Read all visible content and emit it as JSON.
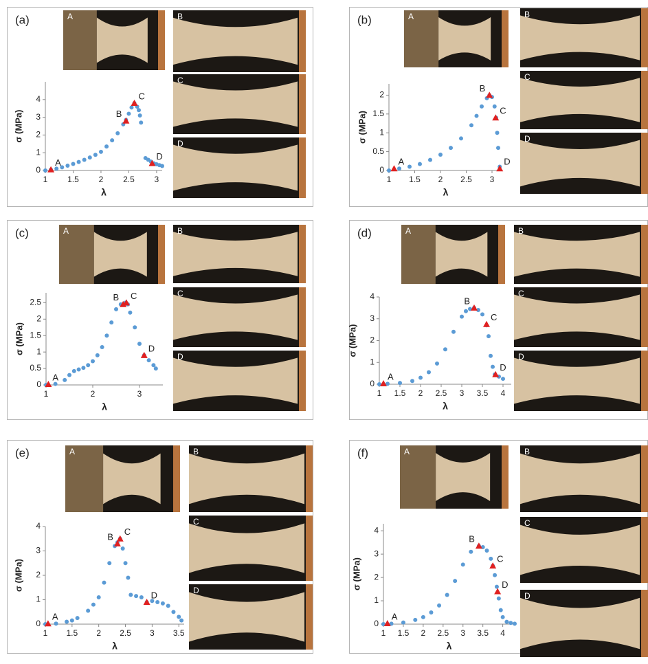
{
  "chart_data": [
    {
      "type": "scatter",
      "panel": "(a)",
      "photos": [
        "A",
        "B",
        "C",
        "D"
      ],
      "x_label": "λ",
      "y_label": "σ (MPa)",
      "xlim": [
        1,
        3.1
      ],
      "ylim": [
        0,
        5
      ],
      "xticks": [
        1,
        1.5,
        2,
        2.5,
        3
      ],
      "yticks": [
        0,
        1,
        2,
        3,
        4
      ],
      "series": [
        {
          "color": "#5b9bd5",
          "x": [
            1,
            1.1,
            1.2,
            1.3,
            1.4,
            1.5,
            1.6,
            1.7,
            1.8,
            1.9,
            2,
            2.1,
            2.2,
            2.3,
            2.4,
            2.45,
            2.5,
            2.55,
            2.6,
            2.65,
            2.68,
            2.7,
            2.72,
            2.8,
            2.85,
            2.9,
            2.95,
            3,
            3.05,
            3.1
          ],
          "values": [
            0,
            0.05,
            0.1,
            0.18,
            0.27,
            0.37,
            0.48,
            0.6,
            0.73,
            0.88,
            1.05,
            1.35,
            1.7,
            2.1,
            2.6,
            2.85,
            3.2,
            3.55,
            3.8,
            3.6,
            3.4,
            3.1,
            2.7,
            0.7,
            0.6,
            0.5,
            0.4,
            0.35,
            0.3,
            0.25
          ]
        },
        {
          "color": "#e02020",
          "marker": "triangle",
          "labels": [
            "A",
            "B",
            "C",
            "D"
          ],
          "x": [
            1.1,
            2.45,
            2.6,
            2.92
          ],
          "values": [
            0.05,
            2.8,
            3.8,
            0.4
          ]
        }
      ]
    },
    {
      "type": "scatter",
      "panel": "(b)",
      "photos": [
        "A",
        "B",
        "C",
        "D"
      ],
      "x_label": "λ",
      "y_label": "σ (MPa)",
      "xlim": [
        1,
        3.2
      ],
      "ylim": [
        0,
        2.3
      ],
      "xticks": [
        1,
        1.5,
        2,
        2.5,
        3
      ],
      "yticks": [
        0,
        0.5,
        1,
        1.5,
        2
      ],
      "series": [
        {
          "color": "#5b9bd5",
          "x": [
            1,
            1.2,
            1.4,
            1.6,
            1.8,
            2,
            2.2,
            2.4,
            2.6,
            2.7,
            2.8,
            2.9,
            2.95,
            3,
            3.05,
            3.08,
            3.1,
            3.12,
            3.15
          ],
          "values": [
            0,
            0.05,
            0.1,
            0.17,
            0.28,
            0.42,
            0.6,
            0.85,
            1.2,
            1.45,
            1.7,
            1.92,
            2,
            1.95,
            1.7,
            1.4,
            1,
            0.6,
            0.1
          ]
        },
        {
          "color": "#e02020",
          "marker": "triangle",
          "labels": [
            "A",
            "B",
            "C",
            "D"
          ],
          "x": [
            1.1,
            2.95,
            3.07,
            3.15
          ],
          "values": [
            0.05,
            2,
            1.4,
            0.05
          ]
        }
      ]
    },
    {
      "type": "scatter",
      "panel": "(c)",
      "photos": [
        "A",
        "B",
        "C",
        "D"
      ],
      "x_label": "λ",
      "y_label": "σ (MPa)",
      "xlim": [
        1,
        3.5
      ],
      "ylim": [
        0,
        2.8
      ],
      "xticks": [
        1,
        2,
        3
      ],
      "yticks": [
        0,
        0.5,
        1,
        1.5,
        2,
        2.5
      ],
      "series": [
        {
          "color": "#5b9bd5",
          "x": [
            1,
            1.2,
            1.4,
            1.5,
            1.6,
            1.7,
            1.8,
            1.9,
            2,
            2.1,
            2.2,
            2.3,
            2.4,
            2.5,
            2.6,
            2.7,
            2.75,
            2.8,
            2.9,
            3,
            3.1,
            3.2,
            3.3,
            3.35
          ],
          "values": [
            0,
            0.03,
            0.15,
            0.3,
            0.42,
            0.47,
            0.52,
            0.6,
            0.72,
            0.9,
            1.15,
            1.5,
            1.9,
            2.3,
            2.45,
            2.5,
            2.45,
            2.2,
            1.75,
            1.25,
            0.9,
            0.75,
            0.6,
            0.5
          ]
        },
        {
          "color": "#e02020",
          "marker": "triangle",
          "labels": [
            "A",
            "B",
            "C",
            "D"
          ],
          "x": [
            1.05,
            2.65,
            2.72,
            3.1
          ],
          "values": [
            0.02,
            2.45,
            2.5,
            0.9
          ]
        }
      ]
    },
    {
      "type": "scatter",
      "panel": "(d)",
      "photos": [
        "A",
        "B",
        "C",
        "D"
      ],
      "x_label": "λ",
      "y_label": "σ (MPa)",
      "xlim": [
        1,
        4.2
      ],
      "ylim": [
        0,
        4
      ],
      "xticks": [
        1,
        1.5,
        2,
        2.5,
        3,
        3.5,
        4
      ],
      "yticks": [
        0,
        1,
        2,
        3,
        4
      ],
      "series": [
        {
          "color": "#5b9bd5",
          "x": [
            1,
            1.2,
            1.5,
            1.8,
            2,
            2.2,
            2.4,
            2.6,
            2.8,
            3,
            3.1,
            3.2,
            3.3,
            3.4,
            3.5,
            3.6,
            3.65,
            3.7,
            3.75,
            3.8,
            3.9,
            4
          ],
          "values": [
            0,
            0.02,
            0.06,
            0.15,
            0.3,
            0.55,
            0.95,
            1.6,
            2.4,
            3.1,
            3.35,
            3.45,
            3.5,
            3.4,
            3.2,
            2.7,
            2.2,
            1.3,
            0.8,
            0.45,
            0.35,
            0.25
          ]
        },
        {
          "color": "#e02020",
          "marker": "triangle",
          "labels": [
            "A",
            "B",
            "C",
            "D"
          ],
          "x": [
            1.1,
            3.3,
            3.6,
            3.82
          ],
          "values": [
            0.03,
            3.5,
            2.75,
            0.45
          ]
        }
      ]
    },
    {
      "type": "scatter",
      "panel": "(e)",
      "photos": [
        "A",
        "B",
        "C",
        "D"
      ],
      "x_label": "λ",
      "y_label": "σ (MPa)",
      "xlim": [
        1,
        3.6
      ],
      "ylim": [
        0,
        4
      ],
      "xticks": [
        1,
        1.5,
        2,
        2.5,
        3,
        3.5
      ],
      "yticks": [
        0,
        1,
        2,
        3,
        4
      ],
      "series": [
        {
          "color": "#5b9bd5",
          "x": [
            1,
            1.2,
            1.4,
            1.5,
            1.6,
            1.8,
            1.9,
            2,
            2.1,
            2.2,
            2.3,
            2.35,
            2.4,
            2.45,
            2.5,
            2.55,
            2.6,
            2.7,
            2.8,
            2.9,
            3,
            3.1,
            3.2,
            3.3,
            3.4,
            3.5,
            3.55
          ],
          "values": [
            0,
            0.02,
            0.1,
            0.15,
            0.25,
            0.55,
            0.8,
            1.1,
            1.7,
            2.5,
            3.2,
            3.35,
            3.5,
            3.1,
            2.5,
            1.9,
            1.2,
            1.15,
            1.1,
            0.9,
            0.95,
            0.9,
            0.85,
            0.75,
            0.5,
            0.3,
            0.15
          ]
        },
        {
          "color": "#e02020",
          "marker": "triangle",
          "labels": [
            "A",
            "B",
            "C",
            "D"
          ],
          "x": [
            1.05,
            2.35,
            2.4,
            2.9
          ],
          "values": [
            0.02,
            3.3,
            3.5,
            0.9
          ]
        }
      ]
    },
    {
      "type": "scatter",
      "panel": "(f)",
      "photos": [
        "A",
        "B",
        "C",
        "D"
      ],
      "x_label": "λ",
      "y_label": "σ (MPa)",
      "xlim": [
        1,
        4.3
      ],
      "ylim": [
        0,
        4.3
      ],
      "xticks": [
        1,
        1.5,
        2,
        2.5,
        3,
        3.5,
        4
      ],
      "yticks": [
        0,
        1,
        2,
        3,
        4
      ],
      "series": [
        {
          "color": "#5b9bd5",
          "x": [
            1,
            1.2,
            1.5,
            1.8,
            2,
            2.2,
            2.4,
            2.6,
            2.8,
            3,
            3.2,
            3.4,
            3.5,
            3.6,
            3.7,
            3.75,
            3.8,
            3.85,
            3.9,
            3.95,
            4,
            4.1,
            4.2,
            4.3
          ],
          "values": [
            0,
            0.02,
            0.07,
            0.18,
            0.3,
            0.5,
            0.8,
            1.25,
            1.85,
            2.55,
            3.1,
            3.35,
            3.3,
            3.15,
            2.8,
            2.5,
            2.1,
            1.6,
            1.1,
            0.6,
            0.3,
            0.1,
            0.05,
            0.02
          ]
        },
        {
          "color": "#e02020",
          "marker": "triangle",
          "labels": [
            "A",
            "B",
            "C",
            "D"
          ],
          "x": [
            1.1,
            3.4,
            3.75,
            3.87
          ],
          "values": [
            0.03,
            3.35,
            2.5,
            1.4
          ]
        }
      ]
    }
  ]
}
